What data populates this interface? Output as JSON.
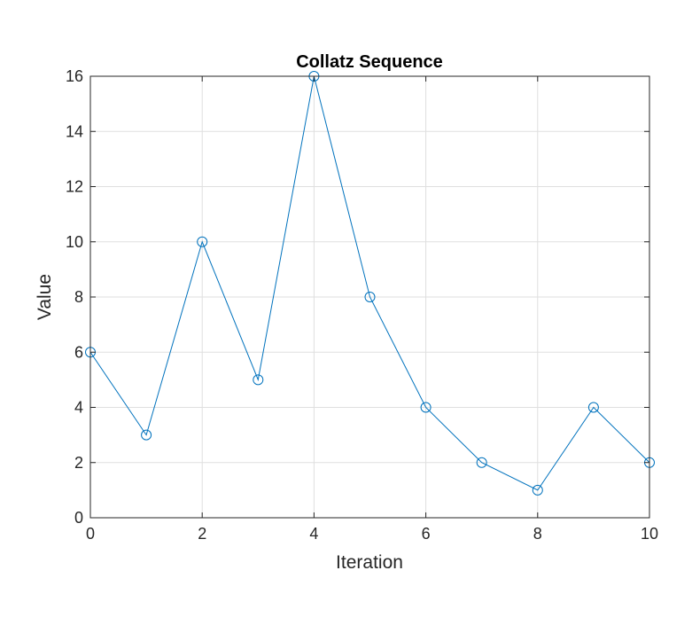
{
  "chart_data": {
    "type": "line",
    "title": "Collatz Sequence",
    "xlabel": "Iteration",
    "ylabel": "Value",
    "xlim": [
      0,
      10
    ],
    "ylim": [
      0,
      16
    ],
    "xticks": [
      0,
      2,
      4,
      6,
      8,
      10
    ],
    "yticks": [
      0,
      2,
      4,
      6,
      8,
      10,
      12,
      14,
      16
    ],
    "grid": true,
    "marker": "circle",
    "series": [
      {
        "x": [
          0,
          1,
          2,
          3,
          4,
          5,
          6,
          7,
          8,
          9,
          10
        ],
        "values": [
          6,
          3,
          10,
          5,
          16,
          8,
          4,
          2,
          1,
          4,
          2
        ],
        "color": "#0072bd"
      }
    ]
  }
}
